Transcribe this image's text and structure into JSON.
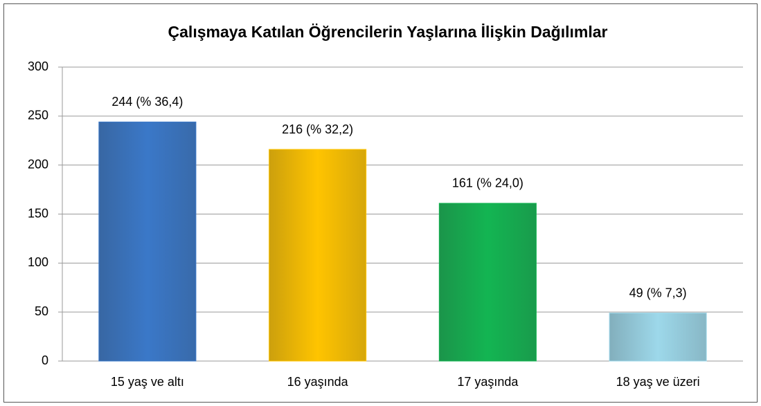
{
  "chart_data": {
    "type": "bar",
    "title": "Çalışmaya Katılan Öğrencilerin Yaşlarına İlişkin Dağılımlar",
    "categories": [
      "15 yaş ve altı",
      "16 yaşında",
      "17 yaşında",
      "18 yaş ve üzeri"
    ],
    "values": [
      244,
      216,
      161,
      49
    ],
    "value_labels": [
      "244 (% 36,4)",
      "216 (% 32,2)",
      "161 (% 24,0)",
      "49 (% 7,3)"
    ],
    "colors": [
      "#3a78c8",
      "#ffc400",
      "#13b552",
      "#9dd8ea"
    ],
    "ylim": [
      0,
      300
    ],
    "yticks": [
      0,
      50,
      100,
      150,
      200,
      250,
      300
    ],
    "grid": true
  }
}
